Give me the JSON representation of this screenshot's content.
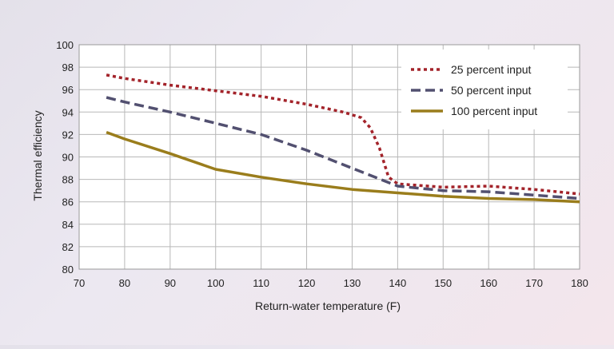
{
  "chart_data": {
    "type": "line",
    "title": "",
    "xlabel": "Return-water temperature (F)",
    "ylabel": "Thermal efficiency",
    "xlim": [
      70,
      180
    ],
    "ylim": [
      80,
      100
    ],
    "xticks": [
      70,
      80,
      90,
      100,
      110,
      120,
      130,
      140,
      150,
      160,
      170,
      180
    ],
    "yticks": [
      80,
      82,
      84,
      86,
      88,
      90,
      92,
      94,
      96,
      98,
      100
    ],
    "grid": true,
    "legend_position": "top-right",
    "series": [
      {
        "name": "25 percent input",
        "color": "#a3232a",
        "style": "dotted",
        "x": [
          76,
          80,
          90,
          100,
          110,
          120,
          128,
          132,
          134,
          136,
          138,
          140,
          150,
          160,
          170,
          180
        ],
        "y": [
          97.3,
          97.0,
          96.4,
          95.9,
          95.4,
          94.7,
          94.0,
          93.5,
          92.6,
          90.8,
          88.2,
          87.6,
          87.3,
          87.4,
          87.1,
          86.7
        ]
      },
      {
        "name": "50 percent input",
        "color": "#525070",
        "style": "dashed",
        "x": [
          76,
          80,
          90,
          100,
          110,
          120,
          130,
          135,
          140,
          150,
          160,
          170,
          180
        ],
        "y": [
          95.3,
          94.9,
          94.0,
          93.0,
          92.0,
          90.6,
          89.0,
          88.2,
          87.4,
          87.0,
          86.9,
          86.6,
          86.3
        ]
      },
      {
        "name": "100 percent input",
        "color": "#9a7d1c",
        "style": "solid",
        "x": [
          76,
          80,
          90,
          100,
          110,
          120,
          130,
          140,
          150,
          160,
          170,
          180
        ],
        "y": [
          92.2,
          91.6,
          90.3,
          88.9,
          88.2,
          87.6,
          87.1,
          86.8,
          86.5,
          86.3,
          86.2,
          86.0
        ]
      }
    ]
  }
}
